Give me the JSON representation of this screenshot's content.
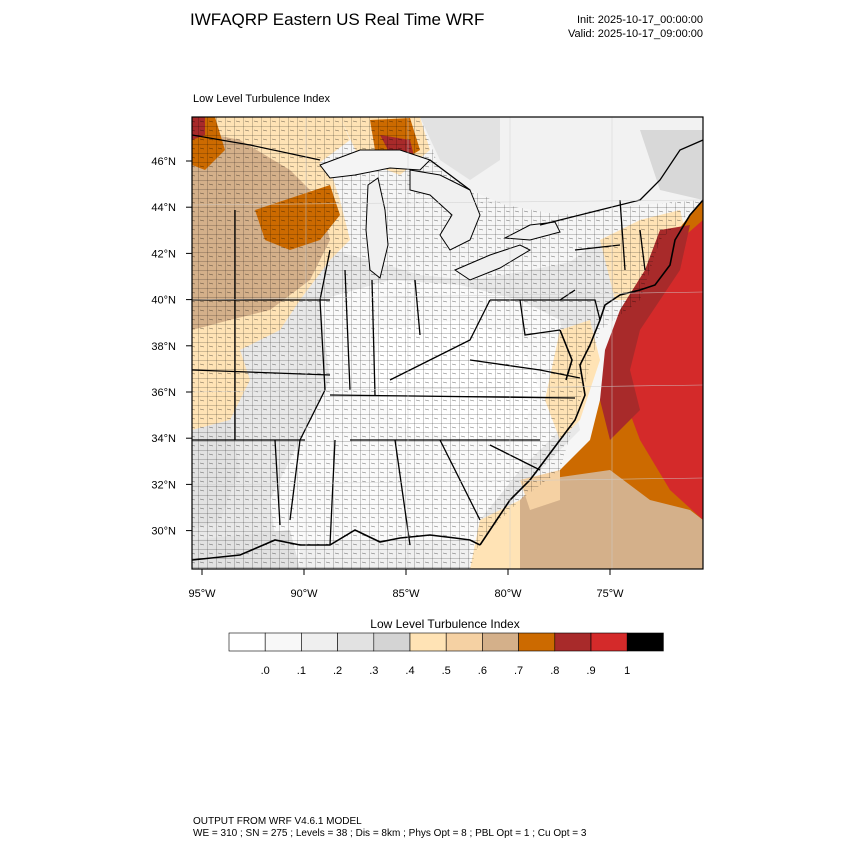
{
  "header": {
    "title": "IWFAQRP Eastern US Real Time WRF",
    "init": "Init: 2025-10-17_00:00:00",
    "valid": "Valid: 2025-10-17_09:00:00"
  },
  "map": {
    "subtitle": "Low Level Turbulence Index",
    "lat_labels": [
      "46°N",
      "44°N",
      "42°N",
      "40°N",
      "38°N",
      "36°N",
      "34°N",
      "32°N",
      "30°N"
    ],
    "lon_labels": [
      "95°W",
      "90°W",
      "85°W",
      "80°W",
      "75°W"
    ],
    "region": "Eastern United States"
  },
  "colorbar": {
    "title": "Low Level Turbulence Index",
    "tick_labels": [
      ".0",
      ".1",
      ".2",
      ".3",
      ".4",
      ".5",
      ".6",
      ".7",
      ".8",
      ".9",
      "1"
    ],
    "colors": [
      "#ffffff",
      "#f8f8f8",
      "#efefef",
      "#e2e2e2",
      "#d4d4d4",
      "#ffe3b5",
      "#f5d1a3",
      "#d4b08a",
      "#cc6a00",
      "#a82a2a",
      "#d42a2a",
      "#000000"
    ]
  },
  "footer": {
    "line1": "OUTPUT FROM WRF V4.6.1 MODEL",
    "line2": "WE = 310 ; SN = 275 ; Levels = 38 ; Dis = 8km ; Phys Opt = 8 ; PBL Opt = 1 ; Cu Opt = 3"
  }
}
